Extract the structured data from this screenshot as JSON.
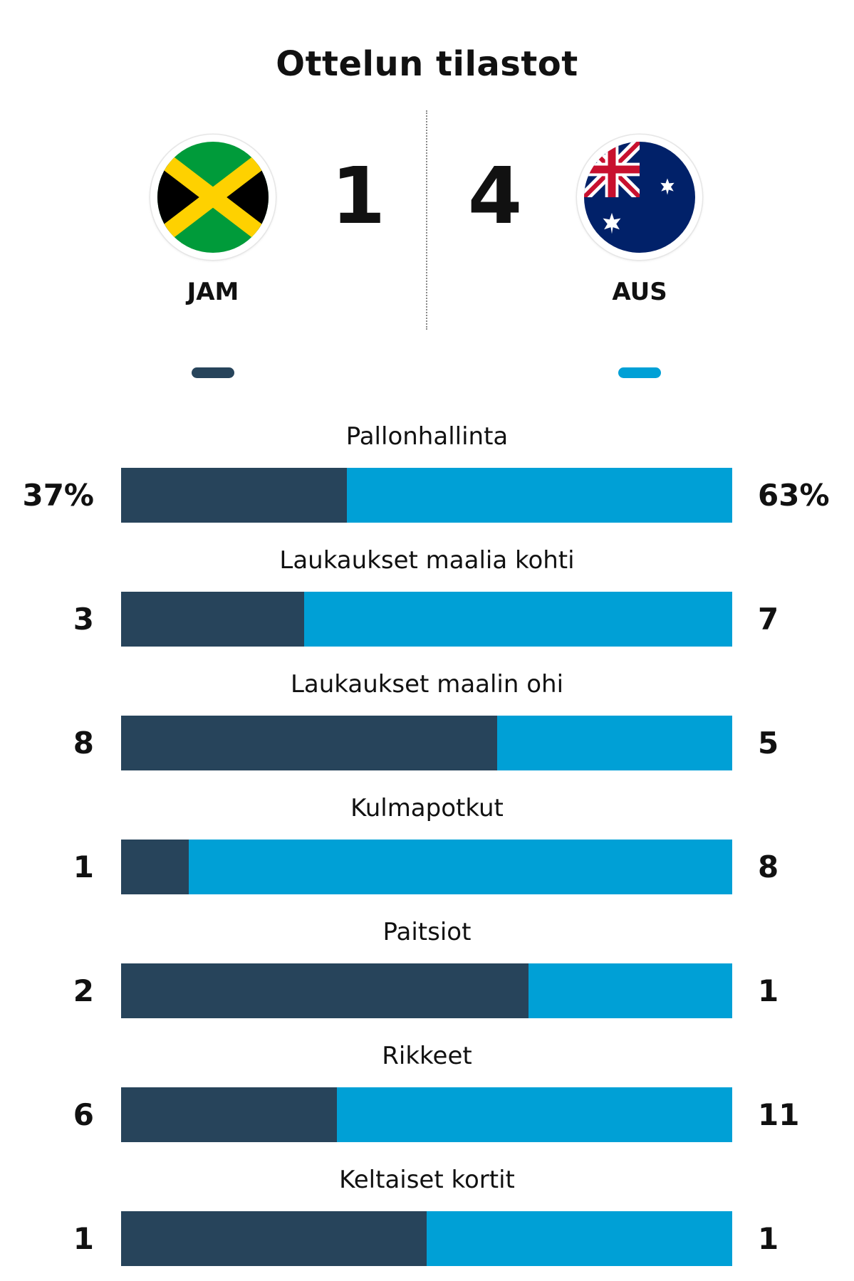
{
  "title": "Ottelun tilastot",
  "home": {
    "abbr": "JAM",
    "score": "1",
    "flag_icon": "jamaica-flag-icon",
    "color": "#27445b"
  },
  "away": {
    "abbr": "AUS",
    "score": "4",
    "flag_icon": "australia-flag-icon",
    "color": "#00a0d6"
  },
  "chart_data": {
    "type": "bar",
    "orientation": "horizontal-stacked",
    "series": [
      {
        "name": "JAM",
        "color": "#27445b"
      },
      {
        "name": "AUS",
        "color": "#00a0d6"
      }
    ],
    "stats": [
      {
        "label": "Pallonhallinta",
        "home": 37,
        "away": 63,
        "home_text": "37%",
        "away_text": "63%"
      },
      {
        "label": "Laukaukset maalia kohti",
        "home": 3,
        "away": 7,
        "home_text": "3",
        "away_text": "7"
      },
      {
        "label": "Laukaukset maalin ohi",
        "home": 8,
        "away": 5,
        "home_text": "8",
        "away_text": "5"
      },
      {
        "label": "Kulmapotkut",
        "home": 1,
        "away": 8,
        "home_text": "1",
        "away_text": "8"
      },
      {
        "label": "Paitsiot",
        "home": 2,
        "away": 1,
        "home_text": "2",
        "away_text": "1"
      },
      {
        "label": "Rikkeet",
        "home": 6,
        "away": 11,
        "home_text": "6",
        "away_text": "11"
      },
      {
        "label": "Keltaiset kortit",
        "home": 1,
        "away": 1,
        "home_text": "1",
        "away_text": "1"
      }
    ]
  }
}
